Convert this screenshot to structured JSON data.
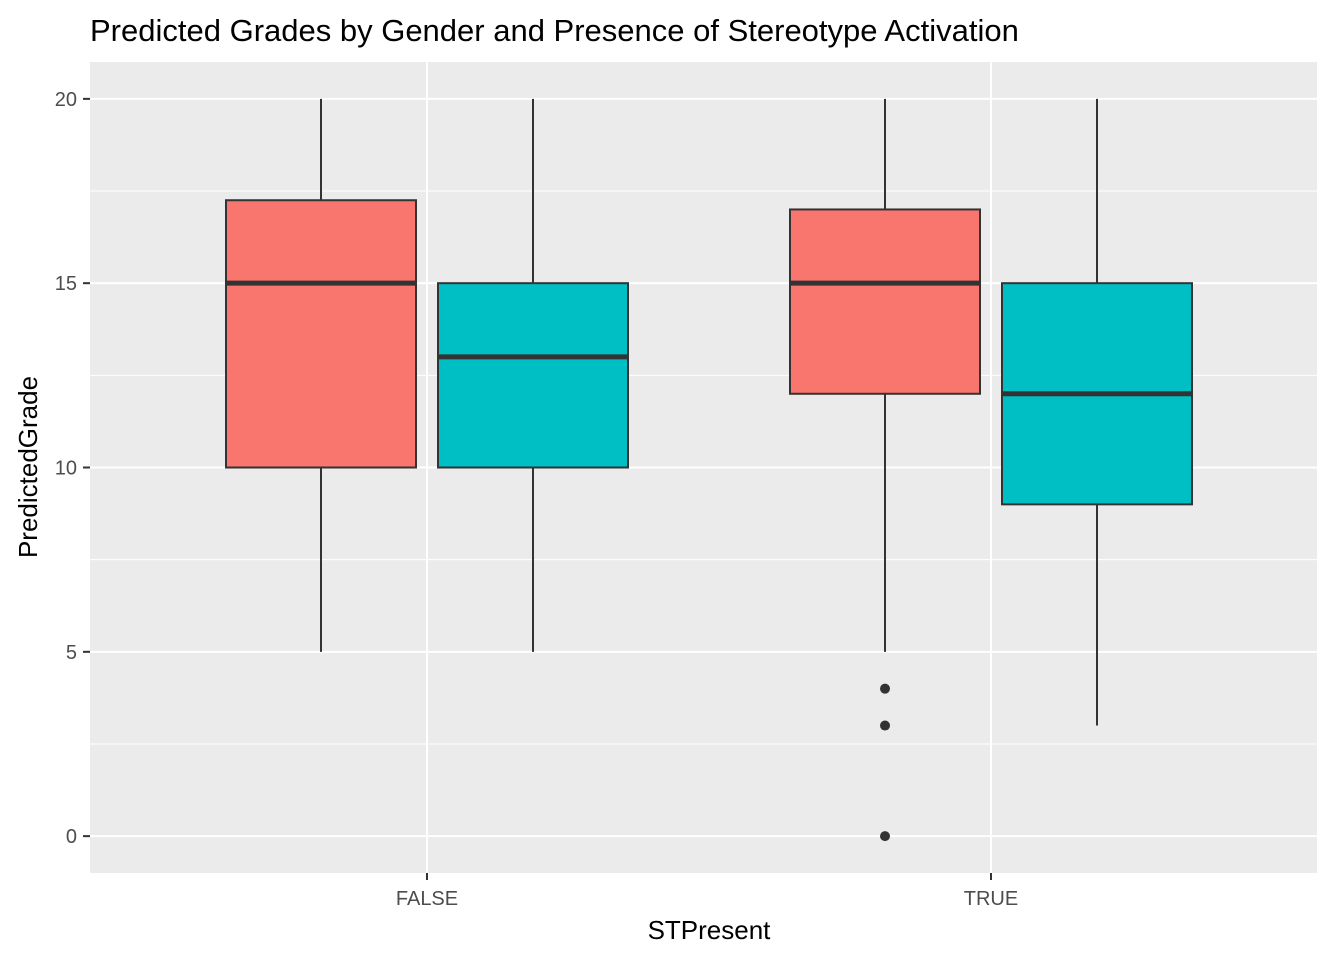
{
  "chart_data": {
    "type": "boxplot",
    "title": "Predicted Grades by Gender and Presence of Stereotype Activation",
    "xlabel": "STPresent",
    "ylabel": "PredictedGrade",
    "categories": [
      "FALSE",
      "TRUE"
    ],
    "ylim": [
      -1,
      21
    ],
    "yticks": [
      0,
      5,
      10,
      15,
      20
    ],
    "grid": true,
    "legend": "none",
    "series": [
      {
        "color": "#F8766D",
        "boxes": [
          {
            "category": "FALSE",
            "min": 5,
            "q1": 10,
            "median": 15,
            "q3": 17.25,
            "max": 20,
            "outliers": []
          },
          {
            "category": "TRUE",
            "min": 5,
            "q1": 12,
            "median": 15,
            "q3": 17,
            "max": 20,
            "outliers": [
              4,
              3,
              0
            ]
          }
        ]
      },
      {
        "color": "#00BFC4",
        "boxes": [
          {
            "category": "FALSE",
            "min": 5,
            "q1": 10,
            "median": 13,
            "q3": 15,
            "max": 20,
            "outliers": []
          },
          {
            "category": "TRUE",
            "min": 3,
            "q1": 9,
            "median": 12,
            "q3": 15,
            "max": 20,
            "outliers": []
          }
        ]
      }
    ]
  }
}
